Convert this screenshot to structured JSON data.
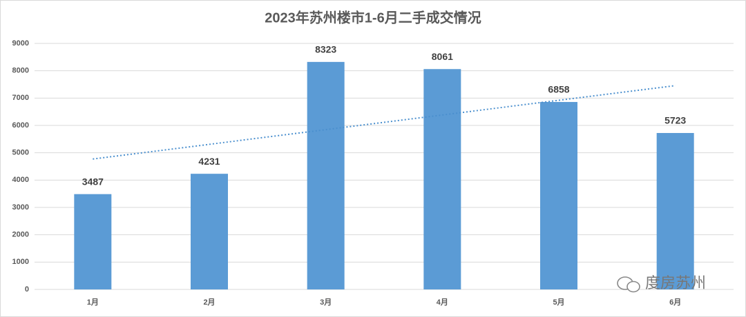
{
  "chart_data": {
    "type": "bar",
    "title": "2023年苏州楼市1-6月二手成交情况",
    "categories": [
      "1月",
      "2月",
      "3月",
      "4月",
      "5月",
      "6月"
    ],
    "values": [
      3487,
      4231,
      8323,
      8061,
      6858,
      5723
    ],
    "color": "#5b9bd5",
    "ylim": [
      0,
      9000
    ],
    "yticks": [
      0,
      1000,
      2000,
      3000,
      4000,
      5000,
      6000,
      7000,
      8000,
      9000
    ],
    "grid": true,
    "trendline": true,
    "trendline_color": "#4a8fce",
    "watermark": "度房苏州"
  }
}
